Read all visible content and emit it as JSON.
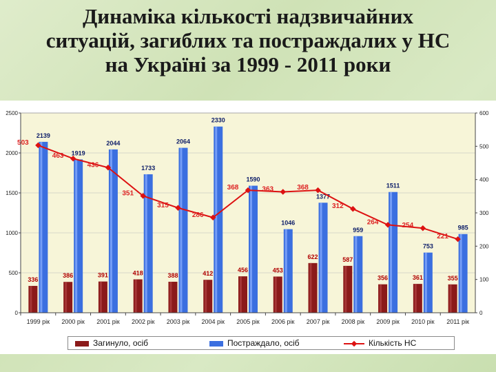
{
  "title_lines": [
    "Динаміка кількості надзвичайних",
    "ситуацій, загиблих та постраждалих у НС",
    "на Україні за 1999 - 2011 роки"
  ],
  "chart_data": {
    "type": "bar",
    "categories": [
      "1999 рік",
      "2000 рік",
      "2001 рік",
      "2002 рік",
      "2003 рік",
      "2004 рік",
      "2005 рік",
      "2006 рік",
      "2007 рік",
      "2008 рік",
      "2009 рік",
      "2010 рік",
      "2011 рік"
    ],
    "series": [
      {
        "name": "Загинуло, осіб",
        "type": "bar",
        "axis": "left",
        "color": "#8b1a1a",
        "values": [
          336,
          386,
          391,
          418,
          388,
          412,
          456,
          453,
          622,
          587,
          356,
          361,
          355
        ]
      },
      {
        "name": "Постраждало, осіб",
        "type": "bar",
        "axis": "left",
        "color": "#3b6fe0",
        "values": [
          2139,
          1919,
          2044,
          1733,
          2064,
          2330,
          1590,
          1046,
          1377,
          959,
          1511,
          753,
          985
        ]
      },
      {
        "name": "Кількість НС",
        "type": "line",
        "axis": "right",
        "color": "#dd1111",
        "values": [
          503,
          463,
          436,
          351,
          315,
          286,
          368,
          363,
          368,
          312,
          264,
          254,
          221
        ]
      }
    ],
    "ylim_left": [
      0,
      2500
    ],
    "yticks_left": [
      "0",
      "500",
      "1000",
      "1500",
      "2000",
      "2500"
    ],
    "ylim_right": [
      0,
      600
    ],
    "yticks_right": [
      "0",
      "100",
      "200",
      "300",
      "400",
      "500",
      "600"
    ],
    "legend_position": "bottom",
    "plot_background": "#f7f5d8"
  }
}
